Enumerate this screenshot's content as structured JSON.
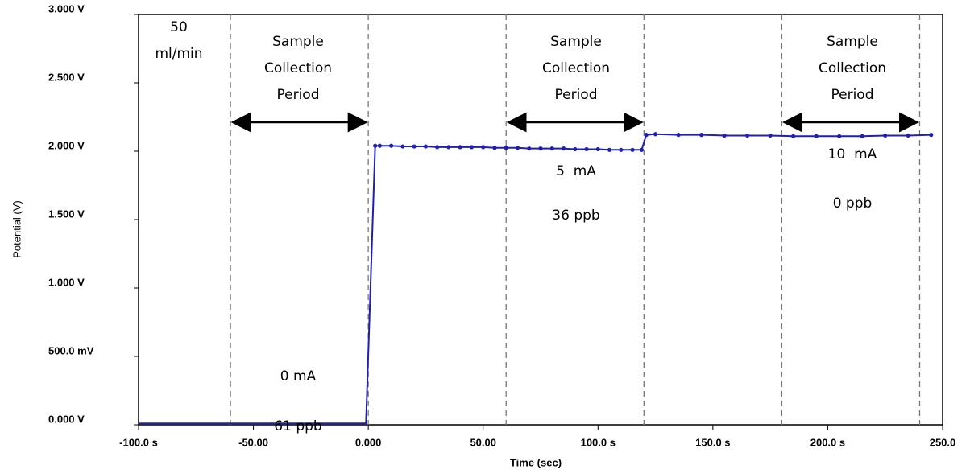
{
  "chart_data": {
    "type": "line",
    "xlabel": "Time (sec)",
    "ylabel": "Potential (V)",
    "xlim": [
      -100,
      250
    ],
    "ylim": [
      0,
      3
    ],
    "xticks": [
      {
        "value": -100,
        "label": "-100.0 s"
      },
      {
        "value": -50,
        "label": "-50.00"
      },
      {
        "value": 0,
        "label": "0.000"
      },
      {
        "value": 50,
        "label": "50.00"
      },
      {
        "value": 100,
        "label": "100.0 s"
      },
      {
        "value": 150,
        "label": "150.0 s"
      },
      {
        "value": 200,
        "label": "200.0 s"
      },
      {
        "value": 250,
        "label": "250.0"
      }
    ],
    "yticks": [
      {
        "value": 0,
        "label": "0.000 V"
      },
      {
        "value": 0.5,
        "label": "500.0 mV"
      },
      {
        "value": 1,
        "label": "1.000 V"
      },
      {
        "value": 1.5,
        "label": "1.500 V"
      },
      {
        "value": 2,
        "label": "2.000 V"
      },
      {
        "value": 2.5,
        "label": "2.500 V"
      },
      {
        "value": 3,
        "label": "3.000 V"
      }
    ],
    "vlines": [
      -60,
      0,
      60,
      120,
      180,
      240
    ],
    "series": [
      {
        "name": "Potential",
        "color": "#1f1fb4",
        "x": [
          -100,
          -1,
          3,
          5,
          10,
          15,
          20,
          25,
          30,
          35,
          40,
          45,
          50,
          55,
          60,
          65,
          70,
          75,
          80,
          85,
          90,
          95,
          100,
          105,
          110,
          115,
          119,
          121,
          125,
          135,
          145,
          155,
          165,
          175,
          185,
          195,
          205,
          215,
          225,
          235,
          245
        ],
        "values": [
          0.01,
          0.01,
          2.04,
          2.04,
          2.04,
          2.035,
          2.035,
          2.035,
          2.03,
          2.03,
          2.03,
          2.03,
          2.03,
          2.025,
          2.025,
          2.025,
          2.02,
          2.02,
          2.02,
          2.02,
          2.015,
          2.015,
          2.015,
          2.01,
          2.01,
          2.01,
          2.01,
          2.12,
          2.125,
          2.12,
          2.12,
          2.115,
          2.115,
          2.115,
          2.11,
          2.11,
          2.11,
          2.11,
          2.115,
          2.115,
          2.12
        ]
      }
    ],
    "annotations": [
      [
        "50",
        "ml/min"
      ],
      [
        "Sample",
        "Collection",
        "Period"
      ],
      [
        "Sample",
        "Collection",
        "Period"
      ],
      [
        "Sample",
        "Collection",
        "Period"
      ],
      [
        "0 mA"
      ],
      [
        "61 ppb"
      ],
      [
        "5  mA"
      ],
      [
        "36 ppb"
      ],
      [
        "10  mA"
      ],
      [
        "0 ppb"
      ]
    ]
  }
}
